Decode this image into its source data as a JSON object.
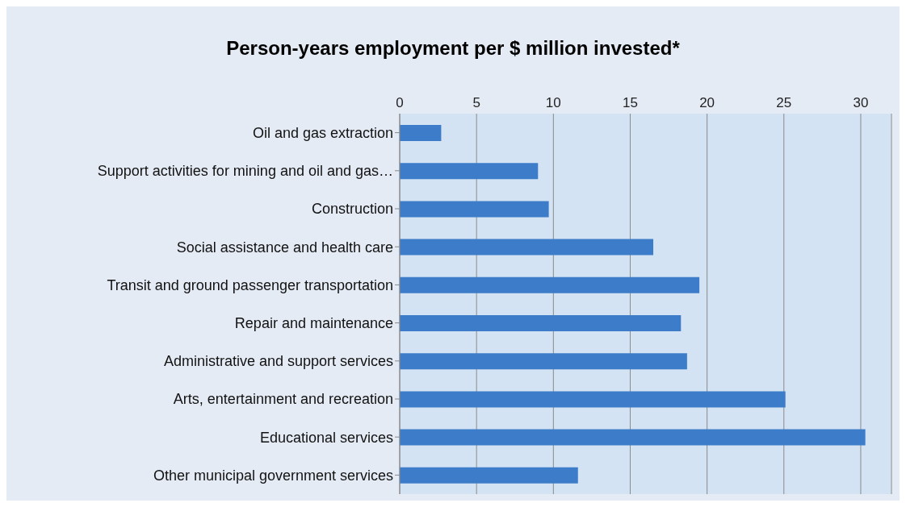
{
  "chart_data": {
    "type": "bar",
    "orientation": "horizontal",
    "title": "Person-years employment per $ million invested*",
    "categories": [
      "Oil and gas extraction",
      "Support activities for mining and oil and gas…",
      "Construction",
      "Social assistance and health care",
      "Transit and ground passenger transportation",
      "Repair and maintenance",
      "Administrative and support services",
      "Arts, entertainment and recreation",
      "Educational services",
      "Other municipal government services"
    ],
    "values": [
      2.7,
      9.0,
      9.7,
      16.5,
      19.5,
      18.3,
      18.7,
      25.1,
      30.3,
      11.6
    ],
    "color": "#3d7cc9",
    "xlim": [
      0,
      32
    ],
    "xticks": [
      0,
      5,
      10,
      15,
      20,
      25,
      30
    ],
    "grid": "x",
    "legend": false
  }
}
